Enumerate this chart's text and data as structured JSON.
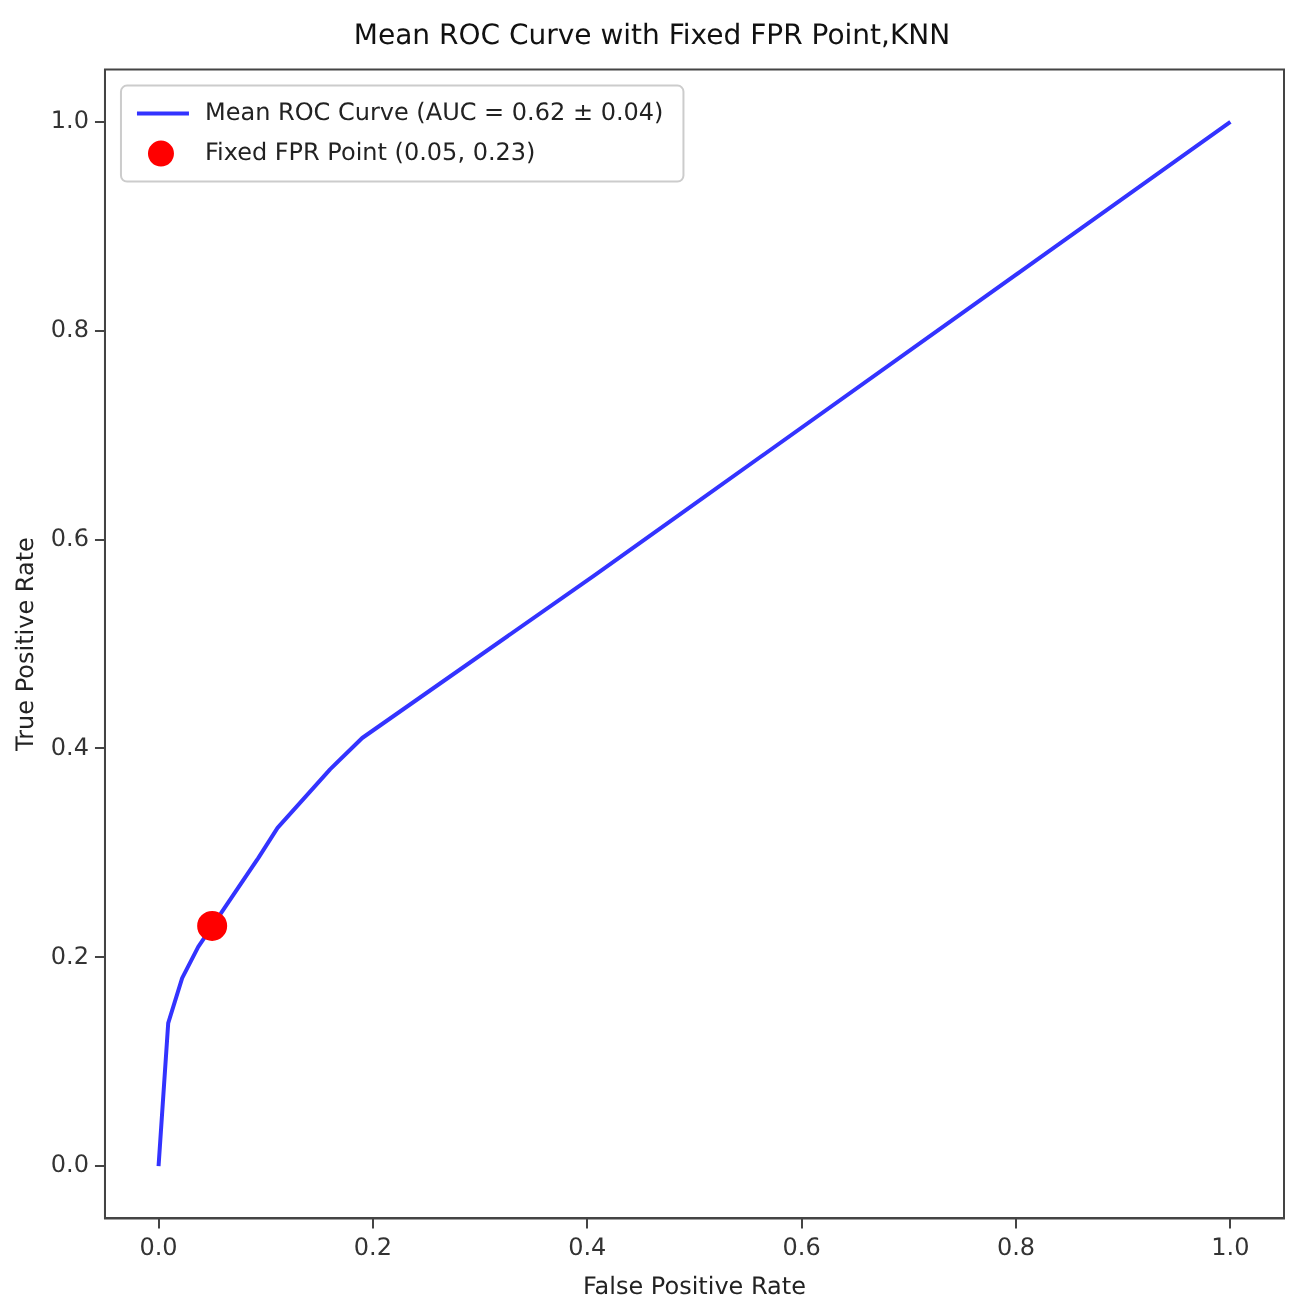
{
  "chart_data": {
    "type": "line",
    "title": "Mean ROC Curve with Fixed FPR Point,KNN",
    "xlabel": "False Positive Rate",
    "ylabel": "True Positive Rate",
    "series": [
      {
        "name": "Mean ROC Curve (AUC = 0.62 ± 0.04)",
        "type": "line",
        "color": "#3333ff",
        "x": [
          0,
          0.009,
          0.022,
          0.037,
          0.093,
          0.111,
          0.16,
          0.19,
          0.407,
          1
        ],
        "values": [
          0,
          0.137,
          0.18,
          0.21,
          0.295,
          0.324,
          0.38,
          0.41,
          0.566,
          1
        ]
      },
      {
        "name": "Fixed FPR Point (0.05, 0.23)",
        "type": "scatter",
        "color": "#ff0000",
        "marker": "circle",
        "x": [
          0.05
        ],
        "values": [
          0.23
        ]
      }
    ],
    "xlim": [
      -0.05,
      1.05
    ],
    "ylim": [
      -0.05,
      1.05
    ],
    "xticks": [
      {
        "value": 0,
        "label": "0.0"
      },
      {
        "value": 0.2,
        "label": "0.2"
      },
      {
        "value": 0.4,
        "label": "0.4"
      },
      {
        "value": 0.6,
        "label": "0.6"
      },
      {
        "value": 0.8,
        "label": "0.8"
      },
      {
        "value": 1,
        "label": "1.0"
      }
    ],
    "yticks": [
      {
        "value": 0,
        "label": "0.0"
      },
      {
        "value": 0.2,
        "label": "0.2"
      },
      {
        "value": 0.4,
        "label": "0.4"
      },
      {
        "value": 0.6,
        "label": "0.6"
      },
      {
        "value": 0.8,
        "label": "0.8"
      },
      {
        "value": 1,
        "label": "1.0"
      }
    ],
    "grid": false,
    "legend": "top left",
    "line_style": "solid",
    "marker": "none"
  }
}
